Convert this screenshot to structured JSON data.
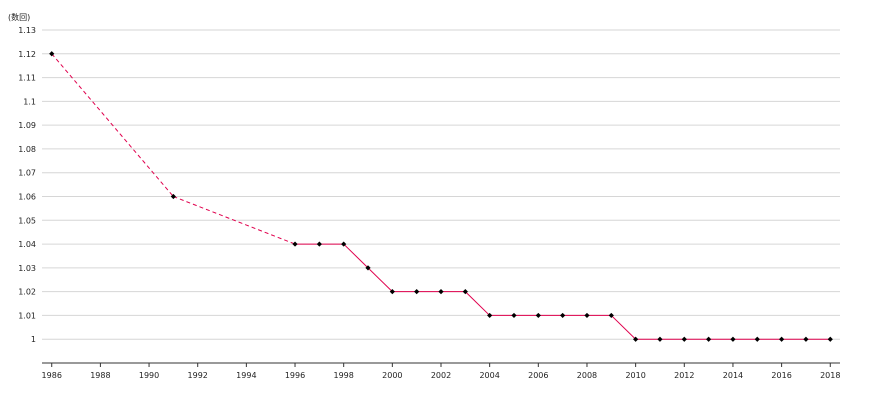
{
  "chart_data": {
    "type": "line",
    "ylabel": "(数回)",
    "xlim": [
      1985.6,
      2018.4
    ],
    "ylim": [
      0.99,
      1.13
    ],
    "yticks": [
      1,
      1.01,
      1.02,
      1.03,
      1.04,
      1.05,
      1.06,
      1.07,
      1.08,
      1.09,
      1.1,
      1.11,
      1.12,
      1.13
    ],
    "ytick_labels": [
      "1",
      "1.01",
      "1.02",
      "1.03",
      "1.04",
      "1.05",
      "1.06",
      "1.07",
      "1.08",
      "1.09",
      "1.1",
      "1.11",
      "1.12",
      "1.13"
    ],
    "xticks": [
      1986,
      1988,
      1990,
      1992,
      1994,
      1996,
      1998,
      2000,
      2002,
      2004,
      2006,
      2008,
      2010,
      2012,
      2014,
      2016,
      2018
    ],
    "xtick_labels": [
      "1986",
      "1988",
      "1990",
      "1992",
      "1994",
      "1996",
      "1998",
      "2000",
      "2002",
      "2004",
      "2006",
      "2008",
      "2010",
      "2012",
      "2014",
      "2016",
      "2018"
    ],
    "grid": true,
    "line_color": "#e0004d",
    "marker_color": "#000000",
    "series": [
      {
        "x": [
          1986,
          1991,
          1996,
          1997,
          1998,
          1999,
          2000,
          2001,
          2002,
          2003,
          2004,
          2005,
          2006,
          2007,
          2008,
          2009,
          2010,
          2011,
          2012,
          2013,
          2014,
          2015,
          2016,
          2017,
          2018
        ],
        "values": [
          1.12,
          1.06,
          1.04,
          1.04,
          1.04,
          1.03,
          1.02,
          1.02,
          1.02,
          1.02,
          1.01,
          1.01,
          1.01,
          1.01,
          1.01,
          1.01,
          1.0,
          1.0,
          1.0,
          1.0,
          1.0,
          1.0,
          1.0,
          1.0,
          1.0
        ]
      }
    ]
  }
}
